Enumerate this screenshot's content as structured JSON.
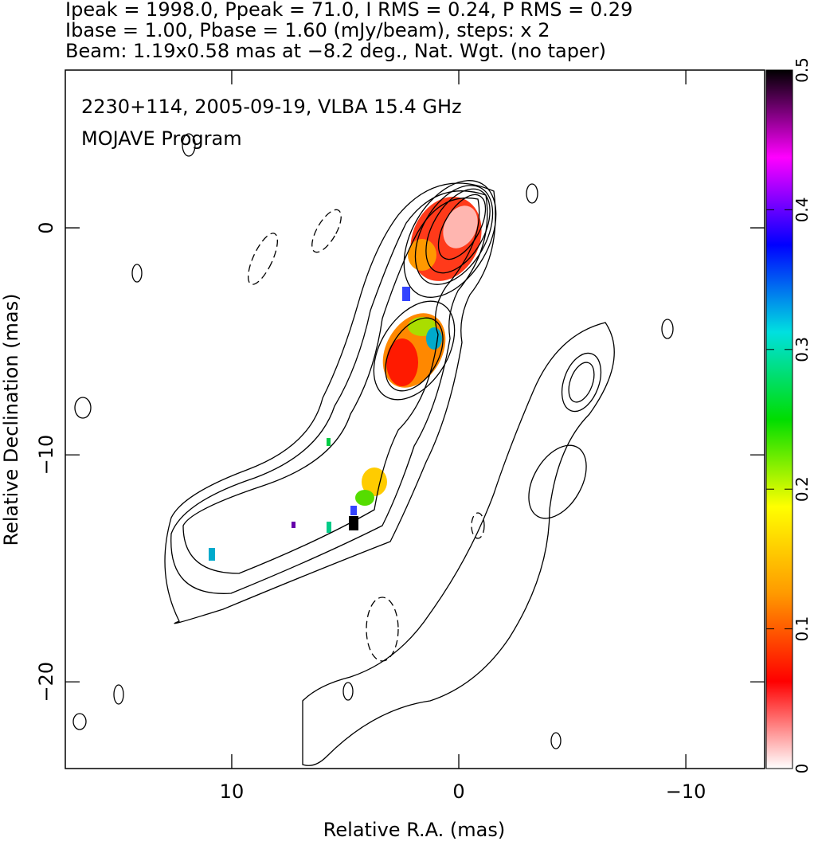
{
  "chart_data": {
    "type": "map",
    "title_lines": [
      "Ipeak = 1998.0, Ppeak = 71.0, I RMS = 0.24, P RMS = 0.29",
      "Ibase = 1.00, Pbase = 1.60 (mJy/beam), steps: x 2",
      "Beam: 1.19x0.58 mas at −8.2 deg., Nat. Wgt. (no taper)"
    ],
    "annotations": [
      "2230+114, 2005-09-19, VLBA 15.4 GHz",
      "MOJAVE Program"
    ],
    "xlabel": "Relative R.A. (mas)",
    "ylabel": "Relative Declination (mas)",
    "xlim": [
      17.33,
      -13.47
    ],
    "ylim": [
      -23.82,
      6.95
    ],
    "xticks": [
      10,
      0,
      {
        "value": -10,
        "label": "−10"
      }
    ],
    "yticks": [
      0,
      {
        "value": -10,
        "label": "−10"
      },
      {
        "value": -20,
        "label": "−20"
      }
    ],
    "colorbar": {
      "lim": [
        0,
        0.5
      ],
      "ticks": [
        0,
        0.1,
        0.2,
        0.3,
        0.4,
        0.5
      ],
      "colors": [
        "#ffffff",
        "#ff0000",
        "#ff9900",
        "#ffff00",
        "#00dd00",
        "#00e0e0",
        "#0000ff",
        "#ff00ff",
        "#000000"
      ]
    }
  }
}
